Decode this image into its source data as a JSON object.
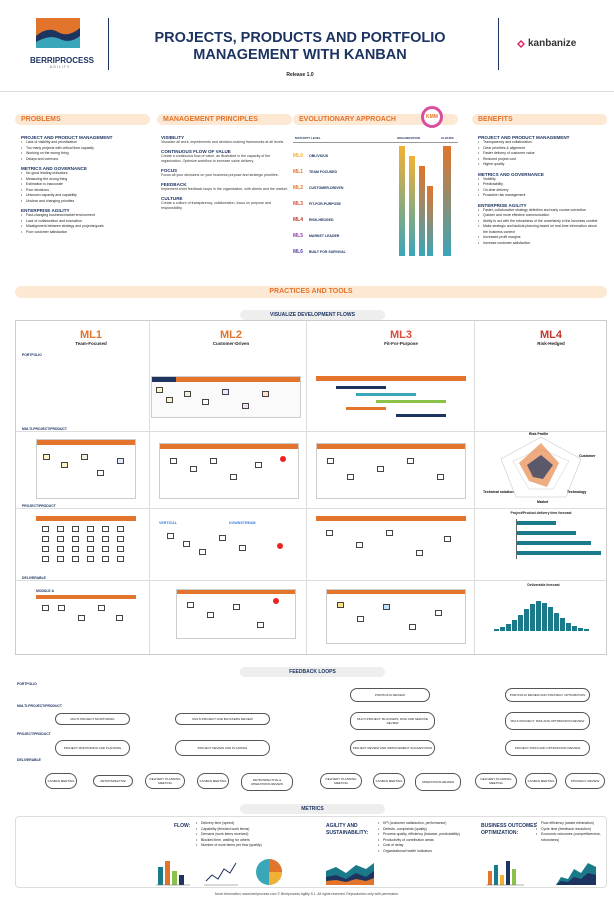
{
  "header": {
    "logo_main": "BERRIPROCESS",
    "logo_sub": "AGILITY",
    "title_line1": "PROJECTS, PRODUCTS AND PORTFOLIO",
    "title_line2": "MANAGEMENT WITH KANBAN",
    "release": "Release 1.0",
    "partner_logo": "kanbanize"
  },
  "problems": {
    "title": "PROBLEMS",
    "groups": [
      {
        "heading": "PROJECT AND PRODUCT MANAGEMENT",
        "items": [
          "Lack of visibility and prioritization",
          "Too many projects with critical time capacity",
          "Working on the wrong thing",
          "Delays and overruns"
        ]
      },
      {
        "heading": "METRICS AND GOVERNANCE",
        "items": [
          "No good leading indicators",
          "Measuring the wrong thing",
          "Estimation is inaccurate",
          "Poor decisions",
          "Unknown capacity and capability",
          "Unclear and changing priorities"
        ]
      },
      {
        "heading": "ENTERPRISE AGILITY",
        "items": [
          "Fast-changing business/market environment",
          "Lack of collaboration and innovation",
          "Misalignment between strategy and projects/goals",
          "Poor customer satisfaction"
        ]
      }
    ]
  },
  "principles": {
    "title": "MANAGEMENT PRINCIPLES",
    "items": [
      {
        "heading": "VISIBILITY",
        "text": "Visualize all work, impediments and decision-making frameworks at all levels."
      },
      {
        "heading": "CONTINUOUS FLOW OF VALUE",
        "text": "Create a continuous flow of value, as illustrated in the capacity of the organization. Optimize workflow to increase value delivery."
      },
      {
        "heading": "FOCUS",
        "text": "Focus all your decisions on your business purpose and strategic priorities."
      },
      {
        "heading": "FEEDBACK",
        "text": "Implement short feedback loops in the organization, with clients and the market."
      },
      {
        "heading": "CULTURE",
        "text": "Create a culture of transparency, collaboration, focus on purpose and responsibility."
      }
    ]
  },
  "evolution": {
    "title": "EVOLUTIONARY APPROACH",
    "badge": "KMM",
    "col_maturity": "MATURITY LEVEL",
    "col_org": "ORGANIZATION",
    "col_client": "CLOUDS",
    "levels": [
      {
        "code": "ML0",
        "label": "OBLIVIOUS",
        "color": "#f2b134"
      },
      {
        "code": "ML1",
        "label": "TEAM FOCUSED",
        "color": "#e2742b"
      },
      {
        "code": "ML2",
        "label": "CUSTOMER-DRIVEN",
        "color": "#e2742b"
      },
      {
        "code": "ML3",
        "label": "FIT-FOR-PURPOSE",
        "color": "#d94f3d"
      },
      {
        "code": "ML4",
        "label": "RISK-HEDGED",
        "color": "#c0392b"
      },
      {
        "code": "ML5",
        "label": "MARKET LEADER",
        "color": "#8e3fa3"
      },
      {
        "code": "ML6",
        "label": "BUILT FOR SURVIVAL",
        "color": "#5b3fa3"
      }
    ]
  },
  "benefits": {
    "title": "BENEFITS",
    "groups": [
      {
        "heading": "PROJECT AND PRODUCT MANAGEMENT",
        "items": [
          "Transparency and collaboration",
          "Clear priorities & alignment",
          "Faster delivery of customer value",
          "Reduced project cost",
          "Higher quality"
        ]
      },
      {
        "heading": "METRICS AND GOVERNANCE",
        "items": [
          "Visibility",
          "Predictability",
          "On-time delivery",
          "Proactive risk management"
        ]
      },
      {
        "heading": "ENTERPRISE AGILITY",
        "items": [
          "Faster, collaborative strategy definition and early course correction",
          "Quicker and more effective communication",
          "Ability to act with the robustness of the uncertainty in the business context",
          "Make strategic and tactical planning based on real-time information about the business context",
          "Increased profit margins",
          "Increase customer satisfaction"
        ]
      }
    ]
  },
  "practices": {
    "title": "PRACTICES AND TOOLS",
    "visualize_title": "VISUALIZE DEVELOPMENT FLOWS",
    "columns": [
      {
        "code": "ML1",
        "label": "Team-Focused",
        "color": "#e2742b"
      },
      {
        "code": "ML2",
        "label": "Customer-Driven",
        "color": "#e2742b"
      },
      {
        "code": "ML3",
        "label": "Fit-For-Purpose",
        "color": "#d94f3d"
      },
      {
        "code": "ML4",
        "label": "Risk-Hedged",
        "color": "#c0392b"
      }
    ],
    "rows": [
      "PORTFOLIO",
      "MULTI-PROJECT/PRODUCT",
      "PROJECT/PRODUCT",
      "DELIVERABLE"
    ],
    "radar_labels": [
      "Risk Profile",
      "Customer",
      "Technology",
      "Market",
      "Technical solution"
    ],
    "forecast_title": "Project/Product delivery time forecast",
    "histogram_title": "Deliverable forecast",
    "ml2_labels": [
      "VERTICAL",
      "DOWNSTREAM"
    ],
    "ml1_sub": "MODULE A"
  },
  "feedback": {
    "title": "FEEDBACK LOOPS",
    "rows": [
      "PORTFOLIO",
      "MULTI-PROJECT/PRODUCT",
      "PROJECT/PRODUCT",
      "DELIVERABLE"
    ],
    "ml1": {
      "multi": "MULTI-PROJECT MONITORING",
      "project": "PROJECT MONITORING AND PLANNING",
      "daily": "KANBAN MEETING",
      "retro": "RETROSPECTIVE"
    },
    "ml2": {
      "multi": "MULTI-PROJECT AND BLOCKERS REVIEW",
      "project": "PROJECT REVIEW AND PLANNING",
      "delivery": "DELIVERY PLANNING MEETING",
      "daily": "KANBAN MEETING",
      "retro": "RETROSPECTIVE & OPERATIONS REVIEW"
    },
    "ml3": {
      "portfolio": "PORTFOLIO REVIEW",
      "multi": "MULTI-PROJECT, BLOCKERS, RISK AND SERVICE REVIEW",
      "project": "PROJECT REVIEW AND IMPROVEMENT SUGGESTIONS",
      "delivery": "DELIVERY PLANNING MEETING",
      "daily": "KANBAN MEETING",
      "retro": "OPERATIONS REVIEW"
    },
    "ml4": {
      "portfolio": "PORTFOLIO REVIEW AND STRATEGY OPTIMIZATION",
      "multi": "MULTI-PROJECT, RISK AND OPTIMIZATION REVIEW",
      "project": "PROJECT RISKS AND OPTIMIZATION REVIEW",
      "delivery": "DELIVERY PLANNING MEETING",
      "daily": "KANBAN MEETING",
      "retro": "STRATEGY REVIEW"
    }
  },
  "metrics": {
    "title": "METRICS",
    "flow_title": "FLOW:",
    "flow_items": [
      "Delivery time (speed)",
      "Capability (finished work items)",
      "Demand (work items received)",
      "Blocked time, waiting for others",
      "Number of work items per flow (quality)"
    ],
    "agility_title": "AGILITY AND SUSTAINABILITY:",
    "agility_items": [
      "KPI (customer satisfaction, performance)",
      "Defects, complaints (quality)",
      "Process quality, efficiency (balance, predictability)",
      "Productivity of contribution areas",
      "Cost of delay",
      "Organizational health indicators"
    ],
    "business_title": "BUSINESS OUTCOMES OPTIMIZATION:",
    "business_items": [
      "Flow efficiency (waste elimination)",
      "Cycle time (feedback resolution)",
      "Economic outcomes (competitiveness, robustness)"
    ]
  },
  "footer": "More information: www.berriprocess.com  © Berriprocess Agility S.L. All rights reserved. Reproduction only with permission."
}
